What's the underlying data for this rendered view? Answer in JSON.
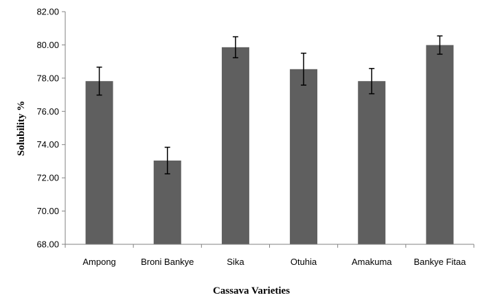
{
  "chart_data": {
    "type": "bar",
    "title": "",
    "xlabel": "Cassava Varieties",
    "ylabel": "Solubility %",
    "categories": [
      "Ampong",
      "Broni Bankye",
      "Sika",
      "Otuhia",
      "Amakuma",
      "Bankye Fitaa"
    ],
    "values": [
      77.82,
      73.04,
      79.86,
      78.54,
      77.82,
      79.99
    ],
    "errors": [
      0.84,
      0.8,
      0.63,
      0.96,
      0.76,
      0.55
    ],
    "ylim": [
      68,
      82
    ],
    "yticks": [
      "68.00",
      "70.00",
      "72.00",
      "74.00",
      "76.00",
      "78.00",
      "80.00",
      "82.00"
    ],
    "ytick_values": [
      68,
      70,
      72,
      74,
      76,
      78,
      80,
      82
    ],
    "grid": false,
    "legend": "none",
    "colors": {
      "bar": "#5f5f5f",
      "axis": "#808080",
      "error_bar": "#000000"
    }
  }
}
